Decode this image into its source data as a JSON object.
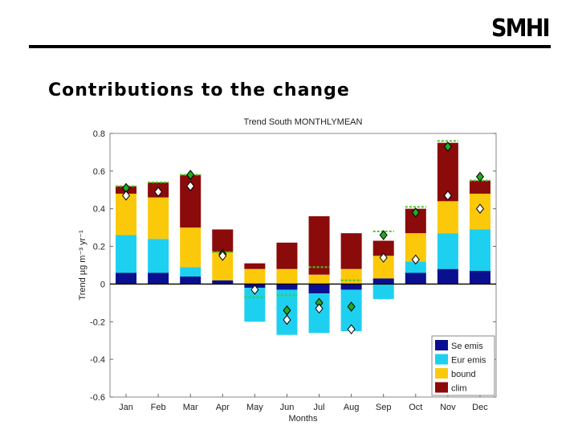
{
  "header": {
    "logo_text": "SMHI",
    "slide_title": "Contributions to the change"
  },
  "colors": {
    "se_emis": "#0a0f8f",
    "eur_emis": "#1ed0f0",
    "bound": "#fcc90a",
    "clim": "#8b0a0a",
    "marker_green": "#22aa22",
    "marker_white": "#ffffff",
    "dash": "#44cc22"
  },
  "chart_data": {
    "type": "bar",
    "title": "Trend  South MONTHLYMEAN",
    "xlabel": "Months",
    "ylabel": "Trend µg m⁻³ yr⁻¹",
    "ylim": [
      -0.6,
      0.8
    ],
    "yticks": [
      "0.8",
      "0.6",
      "0.4",
      "0.2",
      "0",
      "-0.2",
      "-0.4",
      "-0.6"
    ],
    "ytick_values": [
      0.8,
      0.6,
      0.4,
      0.2,
      0,
      -0.2,
      -0.4,
      -0.6
    ],
    "categories": [
      "Jan",
      "Feb",
      "Mar",
      "Apr",
      "May",
      "Jun",
      "Jul",
      "Aug",
      "Sep",
      "Oct",
      "Nov",
      "Dec"
    ],
    "legend_position": "bottom-right",
    "series": [
      {
        "name": "Se emis",
        "key": "se_emis",
        "values": [
          0.06,
          0.06,
          0.04,
          0.02,
          -0.02,
          -0.03,
          -0.05,
          -0.03,
          0.03,
          0.06,
          0.08,
          0.07
        ]
      },
      {
        "name": "Eur emis",
        "key": "eur_emis",
        "values": [
          0.2,
          0.18,
          0.05,
          0.0,
          -0.18,
          -0.24,
          -0.21,
          -0.22,
          -0.08,
          0.06,
          0.19,
          0.22
        ]
      },
      {
        "name": "bound",
        "key": "bound",
        "values": [
          0.22,
          0.22,
          0.21,
          0.15,
          0.08,
          0.08,
          0.05,
          0.08,
          0.12,
          0.15,
          0.17,
          0.19
        ]
      },
      {
        "name": "clim",
        "key": "clim",
        "values": [
          0.04,
          0.08,
          0.28,
          0.12,
          0.03,
          0.14,
          0.31,
          0.19,
          0.08,
          0.13,
          0.31,
          0.07
        ]
      }
    ],
    "total_line": [
      0.52,
      0.54,
      0.58,
      0.17,
      -0.07,
      -0.06,
      0.09,
      0.02,
      0.28,
      0.41,
      0.76,
      0.55
    ],
    "green_markers": [
      0.51,
      null,
      0.58,
      0.16,
      null,
      -0.14,
      -0.1,
      -0.12,
      0.26,
      0.38,
      0.73,
      0.57
    ],
    "white_markers": [
      0.47,
      0.49,
      0.52,
      0.15,
      -0.03,
      -0.19,
      -0.13,
      -0.24,
      0.14,
      0.13,
      0.47,
      0.4
    ]
  }
}
